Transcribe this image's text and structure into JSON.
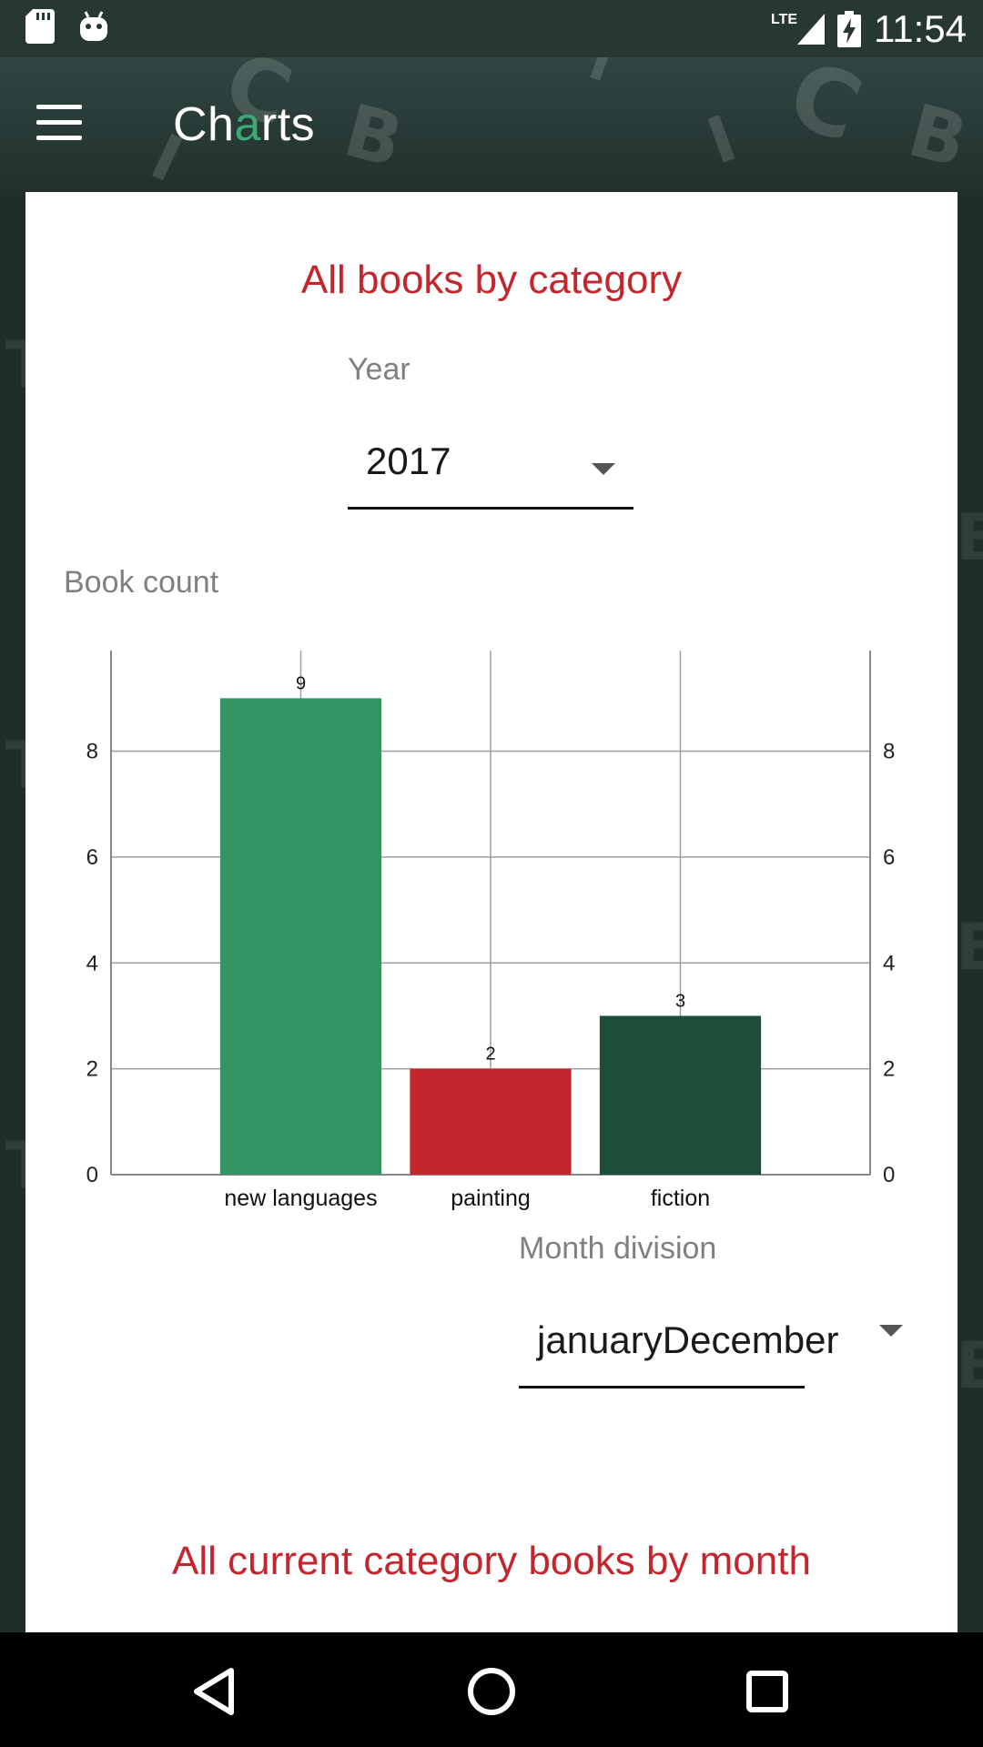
{
  "status_bar": {
    "time": "11:54",
    "network": "LTE",
    "icons": [
      "sd-card-icon",
      "android-icon",
      "signal-icon",
      "battery-charging-icon"
    ]
  },
  "app_bar": {
    "menu_icon": "hamburger-menu-icon",
    "title_parts": [
      "Ch",
      "a",
      "rts"
    ]
  },
  "section1": {
    "title": "All books by category",
    "year_label": "Year",
    "year_value": "2017",
    "chart_ylabel": "Book count"
  },
  "chart_data": {
    "type": "bar",
    "categories": [
      "new languages",
      "painting",
      "fiction"
    ],
    "values": [
      9,
      2,
      3
    ],
    "colors": [
      "#349463",
      "#c4262e",
      "#1c4e3a"
    ],
    "ylabel": "Book count",
    "ylim": [
      0,
      9.9
    ],
    "yticks": [
      0,
      2,
      4,
      6,
      8
    ],
    "grid": true,
    "right_axis": true,
    "data_labels": [
      "9",
      "2",
      "3"
    ]
  },
  "section2": {
    "month_label": "Month division",
    "month_value": "januaryDecember",
    "title": "All current category books by month"
  },
  "nav_bar": {
    "icons": [
      "back-icon",
      "home-icon",
      "recents-icon"
    ]
  },
  "theme": {
    "accent_red": "#c4262e",
    "accent_green": "#3fa877",
    "appbar_dark": "#22302d"
  }
}
